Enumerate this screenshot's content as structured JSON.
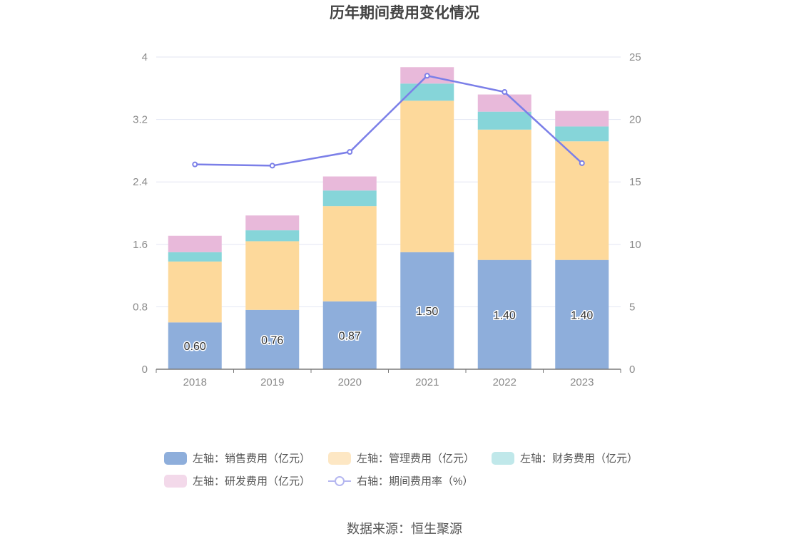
{
  "chart_data": {
    "type": "bar",
    "title": "历年期间费用变化情况",
    "categories": [
      "2018",
      "2019",
      "2020",
      "2021",
      "2022",
      "2023"
    ],
    "stacked": true,
    "y_left": {
      "ylim": [
        0,
        4
      ],
      "ticks": [
        "0",
        "0.8",
        "1.6",
        "2.4",
        "3.2",
        "4"
      ]
    },
    "y_right": {
      "ylim": [
        0,
        25
      ],
      "ticks": [
        "0",
        "5",
        "10",
        "15",
        "20",
        "25"
      ]
    },
    "series": [
      {
        "name": "左轴：销售费用（亿元）",
        "type": "bar",
        "axis": "left",
        "color": "#8eaedb",
        "values": [
          0.6,
          0.76,
          0.87,
          1.5,
          1.4,
          1.4
        ],
        "labels": [
          "0.60",
          "0.76",
          "0.87",
          "1.50",
          "1.40",
          "1.40"
        ]
      },
      {
        "name": "左轴：管理费用（亿元）",
        "type": "bar",
        "axis": "left",
        "color": "#fdd99b",
        "values": [
          0.78,
          0.88,
          1.22,
          1.94,
          1.67,
          1.52
        ]
      },
      {
        "name": "左轴：财务费用（亿元）",
        "type": "bar",
        "axis": "left",
        "color": "#86d5d9",
        "values": [
          0.12,
          0.14,
          0.2,
          0.22,
          0.23,
          0.19
        ]
      },
      {
        "name": "左轴：研发费用（亿元）",
        "type": "bar",
        "axis": "left",
        "color": "#e8b9da",
        "values": [
          0.21,
          0.19,
          0.18,
          0.21,
          0.22,
          0.2
        ]
      },
      {
        "name": "右轴：期间费用率（%）",
        "type": "line",
        "axis": "right",
        "color": "#7b7fe8",
        "values": [
          16.4,
          16.3,
          17.4,
          23.5,
          22.2,
          16.5
        ]
      }
    ],
    "legend_position": "bottom",
    "grid": true
  },
  "legend_colors": [
    "#8eaedb",
    "#fde7c4",
    "#c0e8ea",
    "#f3d9ea",
    "#b5b7f0"
  ],
  "source": "数据来源：恒生聚源"
}
